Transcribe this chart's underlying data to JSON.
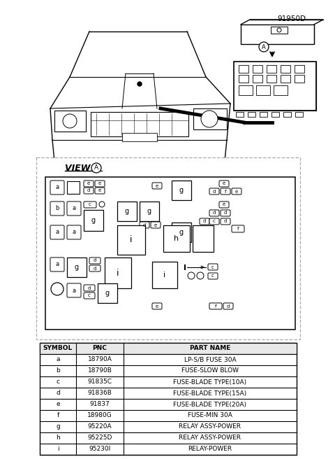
{
  "title_code": "91950D",
  "view_label": "VIEW",
  "bg_color": "#ffffff",
  "table_headers": [
    "SYMBOL",
    "PNC",
    "PART NAME"
  ],
  "table_rows": [
    [
      "a",
      "18790A",
      "LP-S/B FUSE 30A"
    ],
    [
      "b",
      "18790B",
      "FUSE-SLOW BLOW"
    ],
    [
      "c",
      "91835C",
      "FUSE-BLADE TYPE(10A)"
    ],
    [
      "d",
      "91836B",
      "FUSE-BLADE TYPE(15A)"
    ],
    [
      "e",
      "91837",
      "FUSE-BLADE TYPE(20A)"
    ],
    [
      "f",
      "18980G",
      "FUSE-MIN 30A"
    ],
    [
      "g",
      "95220A",
      "RELAY ASSY-POWER"
    ],
    [
      "h",
      "95225D",
      "RELAY ASSY-POWER"
    ],
    [
      "i",
      "95230I",
      "RELAY-POWER"
    ]
  ]
}
